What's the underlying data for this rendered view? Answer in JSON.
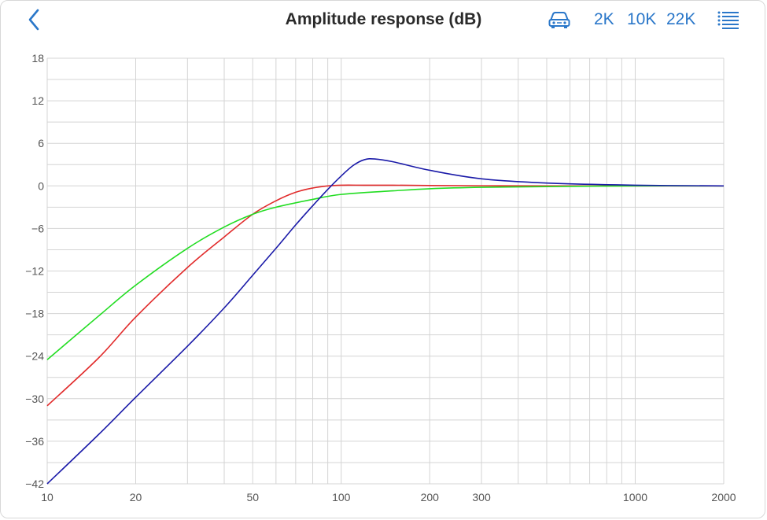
{
  "header": {
    "title": "Amplitude response (dB)",
    "icons": {
      "back": "chevron-left-icon",
      "car": "car-icon",
      "menu": "list-menu-icon"
    },
    "range_buttons": [
      "2K",
      "10K",
      "22K"
    ]
  },
  "colors": {
    "accent": "#2a77c9",
    "grid": "#d4d4d4",
    "series": [
      "#e12b2b",
      "#22dd22",
      "#1a1aa8"
    ]
  },
  "chart_data": {
    "type": "line",
    "title": "Amplitude response (dB)",
    "xlabel": "",
    "ylabel": "",
    "xscale": "log",
    "xlim": [
      10,
      2000
    ],
    "ylim": [
      -42,
      18
    ],
    "grid": true,
    "legend": "none",
    "x_ticks": [
      10,
      20,
      50,
      100,
      200,
      300,
      1000,
      2000
    ],
    "y_ticks": [
      18,
      12,
      6,
      0,
      -6,
      -12,
      -18,
      -24,
      -30,
      -36,
      -42
    ],
    "series": [
      {
        "color": "#e12b2b",
        "points": [
          [
            10,
            -31.0
          ],
          [
            15,
            -24.2
          ],
          [
            20,
            -18.5
          ],
          [
            30,
            -11.5
          ],
          [
            40,
            -7.2
          ],
          [
            50,
            -4.0
          ],
          [
            60,
            -2.1
          ],
          [
            70,
            -0.9
          ],
          [
            80,
            -0.3
          ],
          [
            90,
            0.0
          ],
          [
            100,
            0.1
          ],
          [
            120,
            0.1
          ],
          [
            150,
            0.1
          ],
          [
            200,
            0.05
          ],
          [
            300,
            0.02
          ],
          [
            500,
            0.0
          ],
          [
            1000,
            0.0
          ],
          [
            2000,
            0.0
          ]
        ]
      },
      {
        "color": "#22dd22",
        "points": [
          [
            10,
            -24.5
          ],
          [
            15,
            -18.3
          ],
          [
            20,
            -14.0
          ],
          [
            30,
            -8.8
          ],
          [
            40,
            -5.8
          ],
          [
            50,
            -4.0
          ],
          [
            60,
            -3.0
          ],
          [
            80,
            -1.9
          ],
          [
            100,
            -1.2
          ],
          [
            150,
            -0.7
          ],
          [
            200,
            -0.4
          ],
          [
            300,
            -0.2
          ],
          [
            500,
            -0.1
          ],
          [
            1000,
            0.0
          ],
          [
            2000,
            0.0
          ]
        ]
      },
      {
        "color": "#1a1aa8",
        "points": [
          [
            10,
            -42.0
          ],
          [
            15,
            -35.0
          ],
          [
            20,
            -29.8
          ],
          [
            30,
            -22.6
          ],
          [
            40,
            -17.2
          ],
          [
            50,
            -12.6
          ],
          [
            60,
            -8.8
          ],
          [
            70,
            -5.5
          ],
          [
            80,
            -2.8
          ],
          [
            90,
            -0.5
          ],
          [
            100,
            1.4
          ],
          [
            110,
            2.9
          ],
          [
            120,
            3.7
          ],
          [
            130,
            3.8
          ],
          [
            150,
            3.4
          ],
          [
            200,
            2.2
          ],
          [
            300,
            1.0
          ],
          [
            500,
            0.4
          ],
          [
            1000,
            0.1
          ],
          [
            2000,
            0.0
          ]
        ]
      }
    ]
  }
}
